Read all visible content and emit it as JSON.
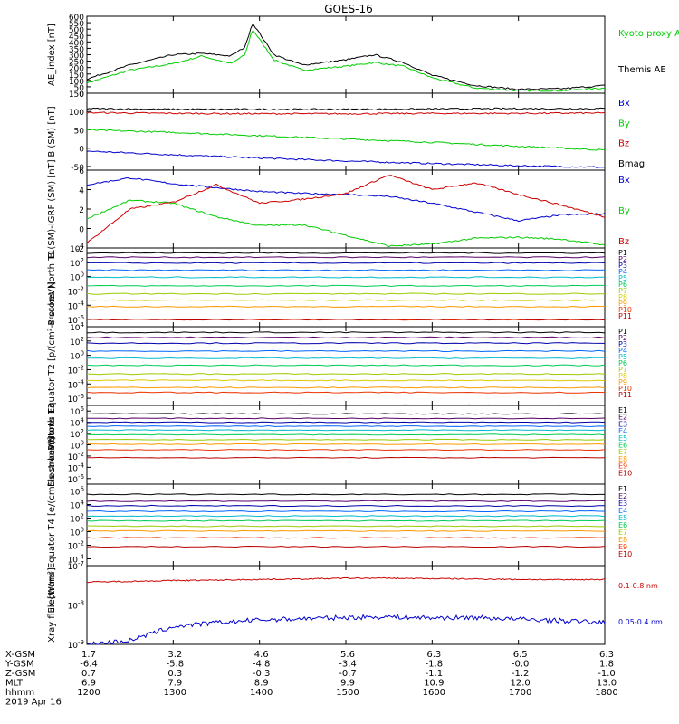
{
  "title": "GOES-16",
  "footer": {
    "row_labels": [
      "X-GSM",
      "Y-GSM",
      "Z-GSM",
      "MLT",
      "hhmm"
    ],
    "columns": [
      [
        "1.7",
        "-6.4",
        "0.7",
        "6.9",
        "1200"
      ],
      [
        "3.2",
        "-5.8",
        "0.3",
        "7.9",
        "1300"
      ],
      [
        "4.6",
        "-4.8",
        "-0.3",
        "8.9",
        "1400"
      ],
      [
        "5.6",
        "-3.4",
        "-0.7",
        "9.9",
        "1500"
      ],
      [
        "6.3",
        "-1.8",
        "-1.1",
        "10.9",
        "1600"
      ],
      [
        "6.5",
        "-0.0",
        "-1.2",
        "12.0",
        "1700"
      ],
      [
        "6.3",
        "1.8",
        "-1.0",
        "13.0",
        "1800"
      ]
    ],
    "date": "2019 Apr 16"
  },
  "chart_data": [
    {
      "type": "line",
      "ylabel": "AE_index [nT]",
      "ylim": [
        0,
        600
      ],
      "yticks": [
        "0",
        "50",
        "100",
        "150",
        "200",
        "250",
        "300",
        "350",
        "400",
        "450",
        "500",
        "550",
        "600"
      ],
      "x": [
        "12:00",
        "12:30",
        "13:00",
        "13:20",
        "13:40",
        "13:50",
        "13:55",
        "14:10",
        "14:30",
        "15:00",
        "15:20",
        "15:40",
        "16:00",
        "16:30",
        "17:00",
        "17:30",
        "18:00"
      ],
      "series": [
        {
          "name": "Kyoto proxy AE",
          "color": "#00cc00",
          "values": [
            80,
            180,
            230,
            290,
            230,
            300,
            500,
            260,
            180,
            210,
            240,
            210,
            120,
            40,
            20,
            20,
            40
          ]
        },
        {
          "name": "Themis AE",
          "color": "#000000",
          "values": [
            110,
            220,
            300,
            310,
            290,
            360,
            550,
            300,
            220,
            260,
            300,
            240,
            140,
            60,
            30,
            35,
            60
          ]
        }
      ]
    },
    {
      "type": "line",
      "ylabel": "B (SM) [nT]",
      "ylim": [
        -60,
        150
      ],
      "yticks": [
        "-50",
        "0",
        "50",
        "100",
        "150"
      ],
      "x": [
        "12:00",
        "13:00",
        "14:00",
        "15:00",
        "16:00",
        "17:00",
        "18:00"
      ],
      "series": [
        {
          "name": "Bx",
          "color": "#0000cc",
          "values": [
            -8,
            -18,
            -27,
            -35,
            -42,
            -48,
            -52
          ]
        },
        {
          "name": "By",
          "color": "#00cc00",
          "values": [
            50,
            43,
            34,
            25,
            16,
            5,
            -5
          ]
        },
        {
          "name": "Bz",
          "color": "#cc0000",
          "values": [
            97,
            95,
            94,
            94,
            95,
            95,
            96
          ]
        },
        {
          "name": "Bmag",
          "color": "#000000",
          "values": [
            108,
            106,
            106,
            106,
            107,
            108,
            108
          ]
        }
      ]
    },
    {
      "type": "line",
      "ylabel": "B (SM)-IGRF (SM) [nT]",
      "ylim": [
        -2,
        6
      ],
      "yticks": [
        "-2",
        "0",
        "2",
        "4",
        "6"
      ],
      "x": [
        "12:00",
        "12:30",
        "13:00",
        "13:30",
        "14:00",
        "14:30",
        "15:00",
        "15:30",
        "16:00",
        "16:30",
        "17:00",
        "17:30",
        "18:00"
      ],
      "series": [
        {
          "name": "Bx",
          "color": "#0000cc",
          "values": [
            4.5,
            5.2,
            4.6,
            4.2,
            3.8,
            3.6,
            3.5,
            3.3,
            2.6,
            1.7,
            0.8,
            1.4,
            1.5
          ]
        },
        {
          "name": "By",
          "color": "#00cc00",
          "values": [
            1.0,
            2.9,
            2.6,
            1.2,
            0.3,
            0.4,
            -0.7,
            -1.8,
            -1.6,
            -1.0,
            -0.9,
            -1.1,
            -1.7
          ]
        },
        {
          "name": "Bz",
          "color": "#cc0000",
          "values": [
            -1.5,
            2.0,
            2.7,
            4.5,
            2.6,
            3.0,
            3.6,
            5.5,
            4.0,
            4.7,
            3.5,
            2.4,
            1.2
          ]
        }
      ]
    },
    {
      "type": "line",
      "log": true,
      "ylabel": "Protons North T1",
      "yrange_exp": [
        -7,
        4
      ],
      "yticks": [
        "10^4",
        "10^2",
        "10^0",
        "10^-2",
        "10^-4",
        "10^-6"
      ],
      "series": [
        {
          "name": "P1",
          "color": "#000000",
          "log10": 3.3
        },
        {
          "name": "P2",
          "color": "#550066",
          "log10": 2.7
        },
        {
          "name": "P3",
          "color": "#0000aa",
          "log10": 1.9
        },
        {
          "name": "P4",
          "color": "#0066ff",
          "log10": 0.9
        },
        {
          "name": "P5",
          "color": "#00bbcc",
          "log10": -0.1
        },
        {
          "name": "P6",
          "color": "#00cc55",
          "log10": -1.3
        },
        {
          "name": "P7",
          "color": "#99cc00",
          "log10": -2.4
        },
        {
          "name": "P8",
          "color": "#ddcc00",
          "log10": -3.3
        },
        {
          "name": "P9",
          "color": "#ff9900",
          "log10": -4.2
        },
        {
          "name": "P10",
          "color": "#ee3300",
          "log10": -6.0
        },
        {
          "name": "P11",
          "color": "#bb0000",
          "log10": -6.0
        }
      ]
    },
    {
      "type": "line",
      "log": true,
      "ylabel": "Protons Equator T2 [p/(cm²-s-sr-keV)]",
      "yrange_exp": [
        -7,
        4
      ],
      "yticks": [
        "10^4",
        "10^2",
        "10^0",
        "10^-2",
        "10^-4",
        "10^-6"
      ],
      "series": [
        {
          "name": "P1",
          "color": "#000000",
          "log10": 3.2
        },
        {
          "name": "P2",
          "color": "#550066",
          "log10": 2.5
        },
        {
          "name": "P3",
          "color": "#0000aa",
          "log10": 1.7
        },
        {
          "name": "P4",
          "color": "#0066ff",
          "log10": 0.6
        },
        {
          "name": "P5",
          "color": "#00bbcc",
          "log10": -0.4
        },
        {
          "name": "P6",
          "color": "#00cc55",
          "log10": -1.4
        },
        {
          "name": "P7",
          "color": "#99cc00",
          "log10": -2.6
        },
        {
          "name": "P8",
          "color": "#ddcc00",
          "log10": -3.5
        },
        {
          "name": "P9",
          "color": "#ff9900",
          "log10": -4.5
        },
        {
          "name": "P10",
          "color": "#ee3300",
          "log10": -5.2
        },
        {
          "name": "P11",
          "color": "#bb0000",
          "log10": -7.0
        }
      ]
    },
    {
      "type": "line",
      "log": true,
      "ylabel": "Electrons North T3",
      "yrange_exp": [
        -7,
        7
      ],
      "yticks": [
        "10^6",
        "10^4",
        "10^2",
        "10^0",
        "10^-2",
        "10^-4",
        "10^-6"
      ],
      "series": [
        {
          "name": "E1",
          "color": "#000000",
          "log10": 5.5
        },
        {
          "name": "E2",
          "color": "#550066",
          "log10": 4.7
        },
        {
          "name": "E3",
          "color": "#0000aa",
          "log10": 4.0
        },
        {
          "name": "E4",
          "color": "#0066ff",
          "log10": 3.3
        },
        {
          "name": "E5",
          "color": "#00bbcc",
          "log10": 2.6
        },
        {
          "name": "E6",
          "color": "#00cc55",
          "log10": 1.8
        },
        {
          "name": "E7",
          "color": "#99cc00",
          "log10": 0.9
        },
        {
          "name": "E8",
          "color": "#ff9900",
          "log10": 0.1
        },
        {
          "name": "E9",
          "color": "#ee3300",
          "log10": -0.9
        },
        {
          "name": "E10",
          "color": "#bb0000",
          "log10": -2.3
        }
      ]
    },
    {
      "type": "line",
      "log": true,
      "ylabel": "Electrons Equator T4 [e/(cm²-s-sr-keV)]",
      "yrange_exp": [
        -5,
        7
      ],
      "yticks": [
        "10^6",
        "10^4",
        "10^2",
        "10^0",
        "10^-2",
        "10^-4"
      ],
      "series": [
        {
          "name": "E1",
          "color": "#000000",
          "log10": 5.5
        },
        {
          "name": "E2",
          "color": "#550066",
          "log10": 4.5
        },
        {
          "name": "E3",
          "color": "#0000aa",
          "log10": 3.8
        },
        {
          "name": "E4",
          "color": "#0066ff",
          "log10": 3.0
        },
        {
          "name": "E5",
          "color": "#00bbcc",
          "log10": 2.3
        },
        {
          "name": "E6",
          "color": "#00cc55",
          "log10": 1.6
        },
        {
          "name": "E7",
          "color": "#99cc00",
          "log10": 0.8
        },
        {
          "name": "E8",
          "color": "#ff9900",
          "log10": 0.1
        },
        {
          "name": "E9",
          "color": "#ee3300",
          "log10": -0.9
        },
        {
          "name": "E10",
          "color": "#bb0000",
          "log10": -2.2
        }
      ]
    },
    {
      "type": "line",
      "log": true,
      "ylabel": "Xray flux [W/m²]",
      "yrange_exp": [
        -9,
        -7
      ],
      "yticks": [
        "10^-7",
        "10^-8",
        "10^-9"
      ],
      "x": [
        "12:00",
        "12:30",
        "13:00",
        "13:30",
        "14:00",
        "14:30",
        "15:00",
        "15:30",
        "16:00",
        "16:30",
        "17:00",
        "17:30",
        "18:00"
      ],
      "series": [
        {
          "name": "0.1-0.8 nm",
          "color": "#cc0000",
          "values_log10": [
            -7.42,
            -7.4,
            -7.38,
            -7.37,
            -7.35,
            -7.34,
            -7.32,
            -7.32,
            -7.33,
            -7.34,
            -7.35,
            -7.36,
            -7.35
          ]
        },
        {
          "name": "0.05-0.4 nm",
          "color": "#0000cc",
          "values_log10": [
            -9.0,
            -8.9,
            -8.55,
            -8.45,
            -8.38,
            -8.35,
            -8.32,
            -8.3,
            -8.33,
            -8.32,
            -8.36,
            -8.4,
            -8.45
          ]
        }
      ]
    }
  ]
}
